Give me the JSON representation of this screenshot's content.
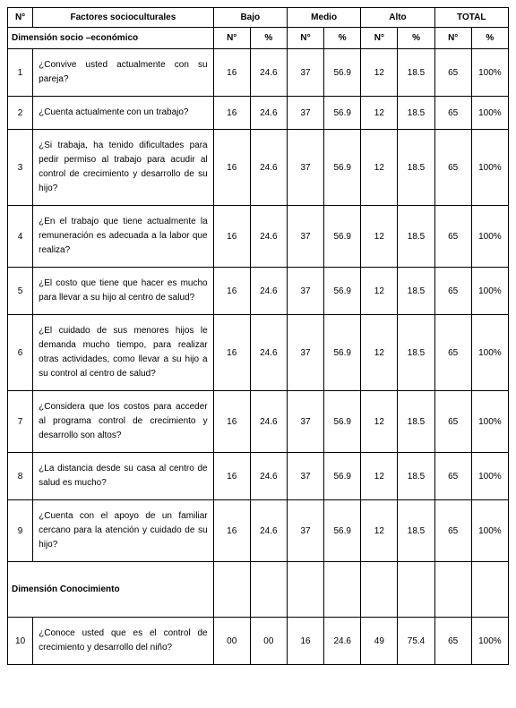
{
  "headers": {
    "num": "N°",
    "factor": "Factores socioculturales",
    "bajo": "Bajo",
    "medio": "Medio",
    "alto": "Alto",
    "total": "TOTAL",
    "n": "N°",
    "pct": "%"
  },
  "sections": {
    "socio": "Dimensión socio –económico",
    "conoc": "Dimensión Conocimiento"
  },
  "rows": [
    {
      "n": "1",
      "q": "¿Convive usted actualmente con su pareja?",
      "bajo_n": "16",
      "bajo_p": "24.6",
      "medio_n": "37",
      "medio_p": "56.9",
      "alto_n": "12",
      "alto_p": "18.5",
      "tot_n": "65",
      "tot_p": "100%"
    },
    {
      "n": "2",
      "q": "¿Cuenta actualmente con un trabajo?",
      "bajo_n": "16",
      "bajo_p": "24.6",
      "medio_n": "37",
      "medio_p": "56.9",
      "alto_n": "12",
      "alto_p": "18.5",
      "tot_n": "65",
      "tot_p": "100%"
    },
    {
      "n": "3",
      "q": "¿Si trabaja, ha tenido dificultades para pedir permiso al trabajo para acudir al control de crecimiento y desarrollo de su hijo?",
      "bajo_n": "16",
      "bajo_p": "24.6",
      "medio_n": "37",
      "medio_p": "56.9",
      "alto_n": "12",
      "alto_p": "18.5",
      "tot_n": "65",
      "tot_p": "100%"
    },
    {
      "n": "4",
      "q": "¿En el trabajo que tiene actualmente la remuneración es adecuada a la labor que realiza?",
      "bajo_n": "16",
      "bajo_p": "24.6",
      "medio_n": "37",
      "medio_p": "56.9",
      "alto_n": "12",
      "alto_p": "18.5",
      "tot_n": "65",
      "tot_p": "100%"
    },
    {
      "n": "5",
      "q": "¿El costo que tiene que hacer es mucho para llevar a su hijo al centro de salud?",
      "bajo_n": "16",
      "bajo_p": "24.6",
      "medio_n": "37",
      "medio_p": "56.9",
      "alto_n": "12",
      "alto_p": "18.5",
      "tot_n": "65",
      "tot_p": "100%"
    },
    {
      "n": "6",
      "q": "¿El cuidado de sus menores hijos le demanda mucho tiempo, para realizar otras actividades, como llevar a su hijo a su control al centro de salud?",
      "bajo_n": "16",
      "bajo_p": "24.6",
      "medio_n": "37",
      "medio_p": "56.9",
      "alto_n": "12",
      "alto_p": "18.5",
      "tot_n": "65",
      "tot_p": "100%"
    },
    {
      "n": "7",
      "q": "¿Considera que los costos para acceder al programa control de crecimiento y desarrollo son altos?",
      "bajo_n": "16",
      "bajo_p": "24.6",
      "medio_n": "37",
      "medio_p": "56.9",
      "alto_n": "12",
      "alto_p": "18.5",
      "tot_n": "65",
      "tot_p": "100%"
    },
    {
      "n": "8",
      "q": "¿La distancia desde su casa al centro de salud es mucho?",
      "bajo_n": "16",
      "bajo_p": "24.6",
      "medio_n": "37",
      "medio_p": "56.9",
      "alto_n": "12",
      "alto_p": "18.5",
      "tot_n": "65",
      "tot_p": "100%"
    },
    {
      "n": "9",
      "q": "¿Cuenta con el apoyo de un familiar cercano para la atención y cuidado de su hijo?",
      "bajo_n": "16",
      "bajo_p": "24.6",
      "medio_n": "37",
      "medio_p": "56.9",
      "alto_n": "12",
      "alto_p": "18.5",
      "tot_n": "65",
      "tot_p": "100%"
    }
  ],
  "rows2": [
    {
      "n": "10",
      "q": "¿Conoce usted que es el control de crecimiento y desarrollo del niño?",
      "bajo_n": "00",
      "bajo_p": "00",
      "medio_n": "16",
      "medio_p": "24.6",
      "alto_n": "49",
      "alto_p": "75.4",
      "tot_n": "65",
      "tot_p": "100%"
    }
  ]
}
